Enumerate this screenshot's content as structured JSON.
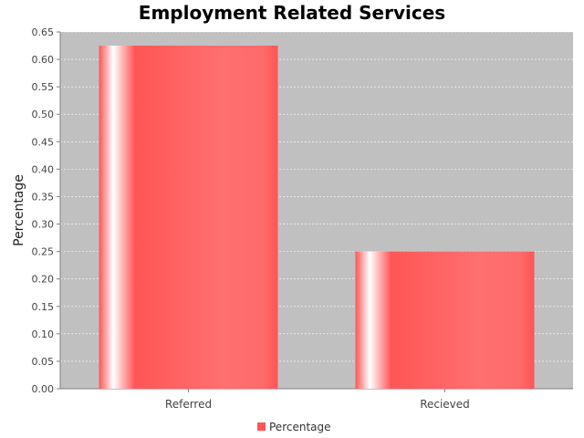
{
  "chart_data": {
    "type": "bar",
    "title": "Employment Related Services",
    "xlabel": "",
    "ylabel": "Percentage",
    "categories": [
      "Referred",
      "Recieved"
    ],
    "series": [
      {
        "name": "Percentage",
        "values": [
          0.625,
          0.25
        ]
      }
    ],
    "ylim": [
      0,
      0.65
    ],
    "yticks": [
      "0.00",
      "0.05",
      "0.10",
      "0.15",
      "0.20",
      "0.25",
      "0.30",
      "0.35",
      "0.40",
      "0.45",
      "0.50",
      "0.55",
      "0.60",
      "0.65"
    ],
    "grid": true,
    "legend": "bottom-center",
    "colors": {
      "bar": "#ff5555",
      "plot_bg": "#c0c0c0",
      "grid": "#ffffff"
    }
  }
}
